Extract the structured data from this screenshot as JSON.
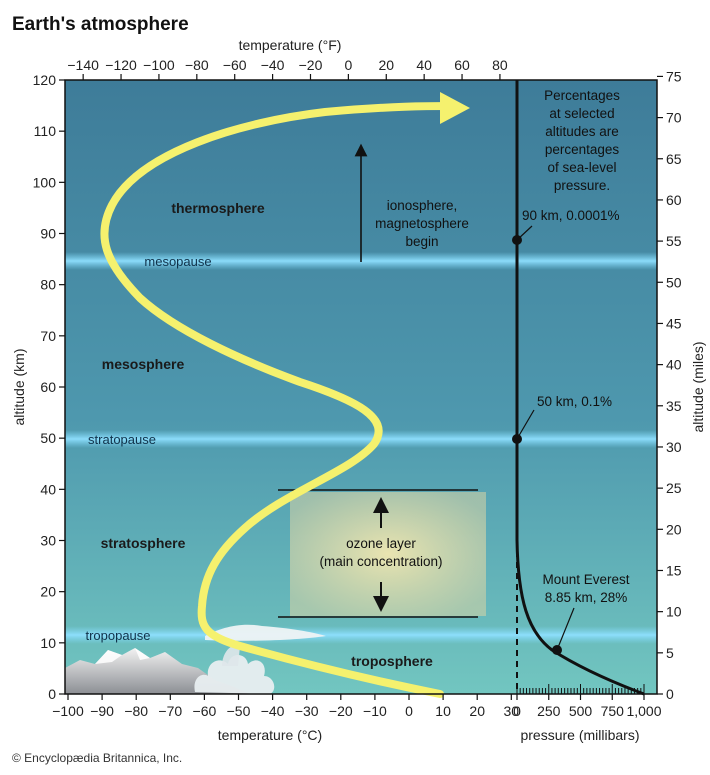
{
  "title": "Earth's atmosphere",
  "credit": "© Encyclopædia Britannica, Inc.",
  "axes": {
    "top": {
      "title": "temperature (°F)",
      "ticks": [
        "−140",
        "−120",
        "−100",
        "−80",
        "−60",
        "−40",
        "−20",
        "0",
        "20",
        "40",
        "60",
        "80"
      ]
    },
    "bottom_left": {
      "title": "temperature (°C)",
      "ticks": [
        "−100",
        "−90",
        "−80",
        "−70",
        "−60",
        "−50",
        "−40",
        "−30",
        "−20",
        "−10",
        "0",
        "10",
        "20",
        "30"
      ]
    },
    "bottom_right": {
      "title": "pressure (millibars)",
      "ticks": [
        "0",
        "250",
        "500",
        "750",
        "1,000"
      ]
    },
    "left": {
      "title": "altitude (km)",
      "ticks": [
        "0",
        "10",
        "20",
        "30",
        "40",
        "50",
        "60",
        "70",
        "80",
        "90",
        "100",
        "110",
        "120"
      ]
    },
    "right": {
      "title": "altitude (miles)",
      "ticks": [
        "0",
        "5",
        "10",
        "15",
        "20",
        "25",
        "30",
        "35",
        "40",
        "45",
        "50",
        "55",
        "60",
        "65",
        "70",
        "75"
      ]
    }
  },
  "layers": [
    "thermosphere",
    "mesosphere",
    "stratosphere",
    "troposphere"
  ],
  "boundaries": [
    "mesopause",
    "stratopause",
    "tropopause"
  ],
  "annotations": {
    "ionosphere_line1": "ionosphere,",
    "ionosphere_line2": "magnetosphere",
    "ionosphere_line3": "begin",
    "ozone_line1": "ozone layer",
    "ozone_line2": "(main concentration)"
  },
  "pressure_note": [
    "Percentages",
    "at selected",
    "altitudes are",
    "percentages",
    "of sea-level",
    "pressure."
  ],
  "pressure_points": [
    {
      "label": "90 km, 0.0001%"
    },
    {
      "label": "50 km, 0.1%"
    },
    {
      "label_line1": "Mount Everest",
      "label_line2": "8.85 km, 28%"
    }
  ],
  "colors": {
    "sky_top": "#3f7f9c",
    "sky_bottom": "#6fc2be",
    "temperature_curve": "#fbf775",
    "boundary_band": "#7ed6f5"
  }
}
